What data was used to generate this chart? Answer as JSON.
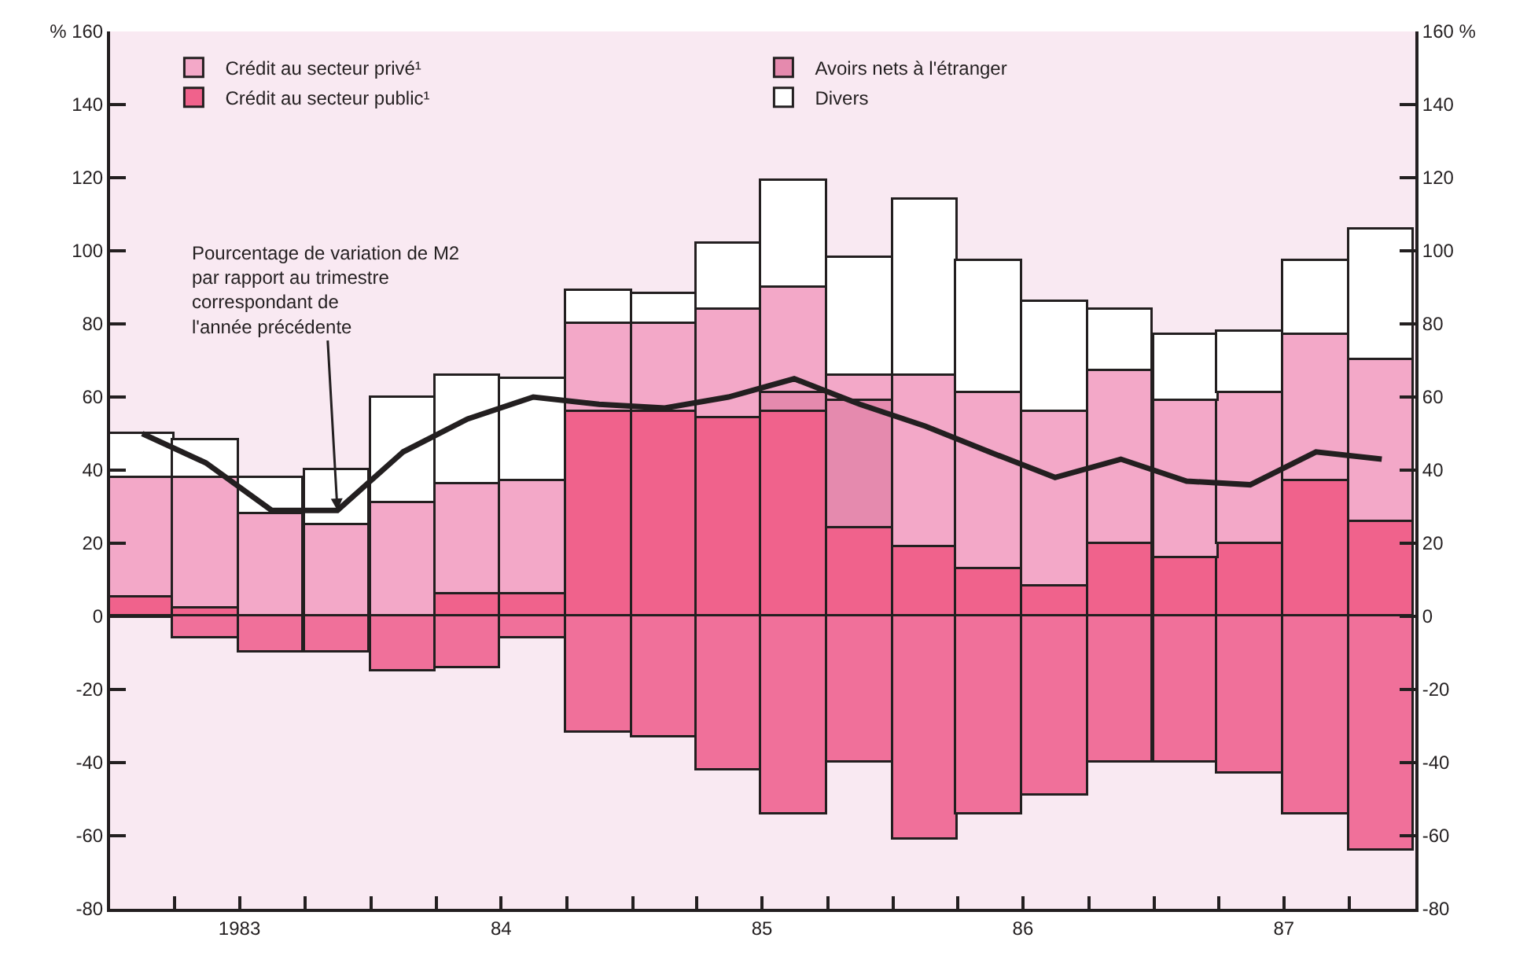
{
  "chart_data": {
    "type": "bar",
    "stacked": true,
    "legend": "top left",
    "x": [
      "1983-02-15",
      "1983-05-15",
      "1983-08-15",
      "1983-11-15",
      "1984-02-15",
      "1984-05-15",
      "1984-08-15",
      "1984-11-15",
      "1985-02-15",
      "1985-05-15",
      "1985-08-15",
      "1985-11-15",
      "1986-02-15",
      "1986-05-15",
      "1986-08-15",
      "1986-11-15",
      "1987-02-15",
      "1987-05-15",
      "1987-08-15",
      "1987-11-15"
    ],
    "xlim": [
      "1983-01-01",
      "1988-01-01"
    ],
    "xticks": [
      {
        "value": "1983-01-01",
        "label": null
      },
      {
        "value": "1983-04-01",
        "label": null
      },
      {
        "value": "1983-07-01",
        "label": "1983"
      },
      {
        "value": "1983-10-01",
        "label": null
      },
      {
        "value": "1984-01-01",
        "label": null
      },
      {
        "value": "1984-04-01",
        "label": null
      },
      {
        "value": "1984-07-01",
        "label": "84"
      },
      {
        "value": "1984-10-01",
        "label": null
      },
      {
        "value": "1985-01-01",
        "label": null
      },
      {
        "value": "1985-04-01",
        "label": null
      },
      {
        "value": "1985-07-01",
        "label": "85"
      },
      {
        "value": "1985-10-01",
        "label": null
      },
      {
        "value": "1986-01-01",
        "label": null
      },
      {
        "value": "1986-04-01",
        "label": null
      },
      {
        "value": "1986-07-01",
        "label": "86"
      },
      {
        "value": "1986-10-01",
        "label": null
      },
      {
        "value": "1987-01-01",
        "label": null
      },
      {
        "value": "1987-04-01",
        "label": null
      },
      {
        "value": "1987-07-01",
        "label": "87"
      },
      {
        "value": "1987-10-01",
        "label": null
      },
      {
        "value": "1988-01-01",
        "label": null
      }
    ],
    "ylim": [
      -80,
      160
    ],
    "yticks": [
      -80,
      -60,
      -40,
      -20,
      0,
      20,
      40,
      60,
      80,
      100,
      120,
      140,
      {
        "value": 160,
        "label": "% 160"
      }
    ],
    "y2lim": [
      -80,
      160
    ],
    "y2ticks": [
      -80,
      -60,
      -40,
      -20,
      0,
      20,
      40,
      60,
      80,
      100,
      120,
      140,
      {
        "value": 160,
        "label": "160 %"
      }
    ],
    "series": [
      {
        "name": "Crédit au secteur public¹",
        "color": "#f0628c",
        "values": [
          5,
          2,
          null,
          null,
          null,
          6,
          6,
          56,
          56,
          54,
          56,
          24,
          19,
          13,
          8,
          20,
          16,
          20,
          37,
          26
        ]
      },
      {
        "name": "Avoirs nets à l'étranger",
        "color": "#e58aae",
        "values": [
          null,
          null,
          null,
          null,
          null,
          null,
          null,
          null,
          null,
          null,
          5,
          35,
          null,
          null,
          null,
          null,
          null,
          null,
          null,
          null
        ]
      },
      {
        "name": "Crédit au secteur privé¹",
        "color": "#f3a8c8",
        "values": [
          33,
          36,
          28,
          25,
          31,
          30,
          31,
          24,
          24,
          30,
          29,
          7,
          47,
          48,
          48,
          47,
          43,
          41,
          40,
          44
        ]
      },
      {
        "name": "Divers",
        "color": "#ffffff",
        "values": [
          12,
          10,
          10,
          15,
          29,
          30,
          28,
          9,
          8,
          18,
          29,
          32,
          48,
          36,
          30,
          17,
          18,
          17,
          20,
          36
        ]
      },
      {
        "color": "#f0709a",
        "values": [
          null,
          -6,
          -10,
          -10,
          -15,
          -14,
          -6,
          -32,
          -33,
          -42,
          -54,
          -40,
          -61,
          -54,
          -49,
          -40,
          -40,
          -43,
          -54,
          -64
        ]
      },
      {
        "type": "line",
        "color": "#231f20",
        "values": [
          50,
          42,
          29,
          29,
          45,
          54,
          60,
          58,
          57,
          60,
          65,
          58,
          52,
          45,
          38,
          43,
          37,
          36,
          45,
          43
        ]
      }
    ],
    "annotations": [
      {
        "text": "Pourcentage de variation de M2\npar rapport au trimestre\ncorrespondant de\nl'année précédente",
        "x": "1983-11-15",
        "y": 29
      }
    ]
  }
}
